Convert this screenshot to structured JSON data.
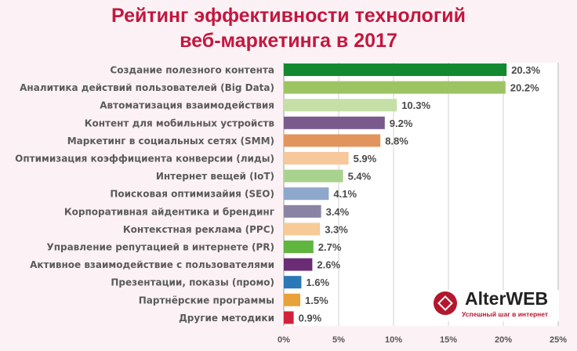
{
  "title_line1": "Рейтинг эффективности технологий",
  "title_line2": "веб-маркетинга в 2017",
  "logo": {
    "name": "AlterWEB",
    "tagline": "Успешный шаг в интернет"
  },
  "chart_data": {
    "type": "bar",
    "orientation": "horizontal",
    "title": "Рейтинг эффективности технологий веб-маркетинга в 2017",
    "categories": [
      "Создание полезного контента",
      "Аналитика действий пользователей (Big Data)",
      "Автоматизация взаимодействия",
      "Контент для мобильных устройств",
      "Маркетинг в социальных сетях (SMM)",
      "Оптимизация коэффициента конверсии (лиды)",
      "Интернет вещей (IoT)",
      "Поисковая оптимизайия (SEO)",
      "Корпоративная айдентика и брендинг",
      "Контекстная реклама (PPC)",
      "Управление репутацией в интернете (PR)",
      "Активное взаимодействие с пользователями",
      "Презентации, показы (промо)",
      "Партнёрские программы",
      "Другие методики"
    ],
    "values": [
      20.3,
      20.2,
      10.3,
      9.2,
      8.8,
      5.9,
      5.4,
      4.1,
      3.4,
      3.3,
      2.7,
      2.6,
      1.6,
      1.5,
      0.9
    ],
    "value_labels": [
      "20.3%",
      "20.2%",
      "10.3%",
      "9.2%",
      "8.8%",
      "5.9%",
      "5.4%",
      "4.1%",
      "3.4%",
      "3.3%",
      "2.7%",
      "2.6%",
      "1.6%",
      "1.5%",
      "0.9%"
    ],
    "colors": [
      "#13892f",
      "#9cc463",
      "#c6dfa6",
      "#7a5a8c",
      "#e2945e",
      "#f6c89b",
      "#a9d28f",
      "#8ea8cc",
      "#8a83a3",
      "#f6cb98",
      "#5fb53e",
      "#6a2c74",
      "#2a78b6",
      "#e9a13a",
      "#d3213a"
    ],
    "xticks": [
      "0%",
      "5%",
      "10%",
      "15%",
      "20%",
      "25%"
    ],
    "xlim": [
      0,
      25
    ],
    "grid": true,
    "xlabel": "",
    "ylabel": ""
  }
}
